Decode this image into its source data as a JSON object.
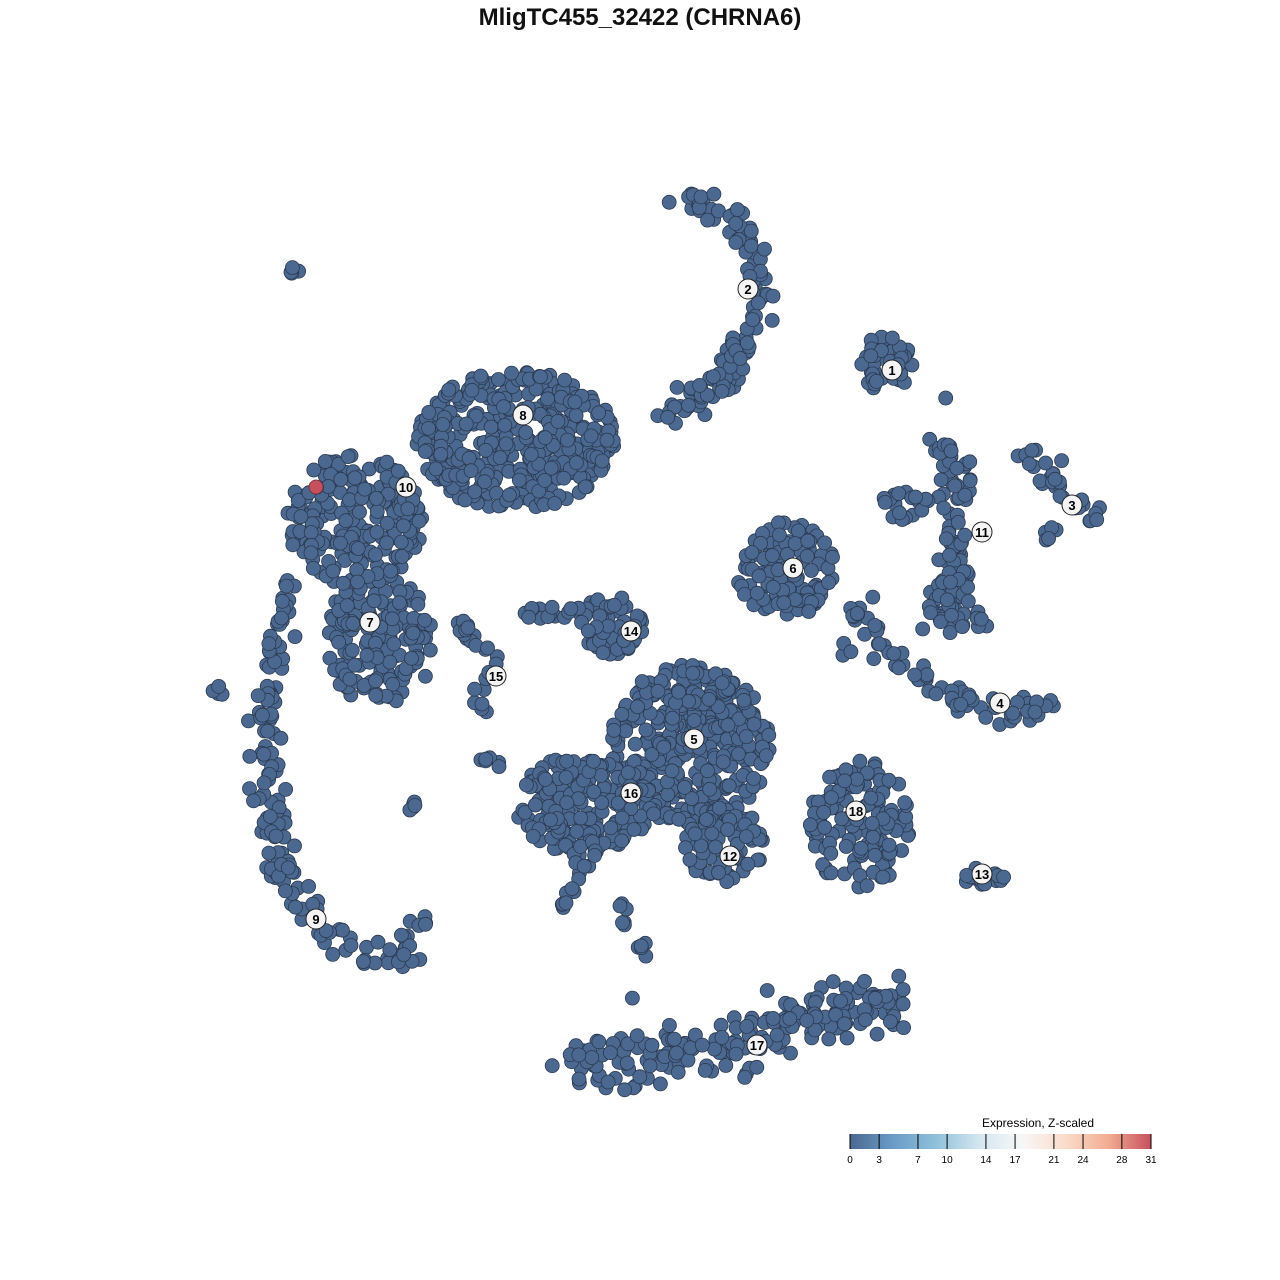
{
  "chart_data": {
    "type": "scatter",
    "title": "MligTC455_32422 (CHRNA6)",
    "xlabel": "",
    "ylabel": "",
    "grid": false,
    "clusters": [
      {
        "label": "1",
        "x": 28,
        "y": 30
      },
      {
        "label": "2",
        "x": 12,
        "y": 39
      },
      {
        "label": "3",
        "x": 48,
        "y": 15
      },
      {
        "label": "4",
        "x": 40,
        "y": -7
      },
      {
        "label": "5",
        "x": 6,
        "y": -11
      },
      {
        "label": "6",
        "x": 17,
        "y": 8
      },
      {
        "label": "7",
        "x": -30,
        "y": 2
      },
      {
        "label": "8",
        "x": -13,
        "y": 25
      },
      {
        "label": "9",
        "x": -36,
        "y": -31
      },
      {
        "label": "10",
        "x": -26,
        "y": 17
      },
      {
        "label": "11",
        "x": 38,
        "y": 12
      },
      {
        "label": "12",
        "x": 10,
        "y": -24
      },
      {
        "label": "13",
        "x": 38,
        "y": -26
      },
      {
        "label": "14",
        "x": -1,
        "y": 1
      },
      {
        "label": "15",
        "x": -16,
        "y": -4
      },
      {
        "label": "16",
        "x": -1,
        "y": -17
      },
      {
        "label": "17",
        "x": 13,
        "y": -45
      },
      {
        "label": "18",
        "x": 24,
        "y": -19
      }
    ],
    "highlighted_points": [
      {
        "x": -36,
        "y": 17,
        "value": 31
      }
    ],
    "default_value": 0,
    "legend": {
      "title": "Expression, Z-scaled",
      "placement": "bottom-right",
      "ticks": [
        "0",
        "3",
        "7",
        "10",
        "14",
        "17",
        "21",
        "24",
        "28",
        "31"
      ],
      "range": [
        0,
        31
      ],
      "colors": [
        "#4a6890",
        "#6a9cc8",
        "#8fc0da",
        "#d3e6f0",
        "#f7f7f7",
        "#fbdccb",
        "#f2ad92",
        "#c7505d"
      ]
    },
    "point_fill": "#4b6890",
    "point_stroke": "#2b3a50"
  }
}
